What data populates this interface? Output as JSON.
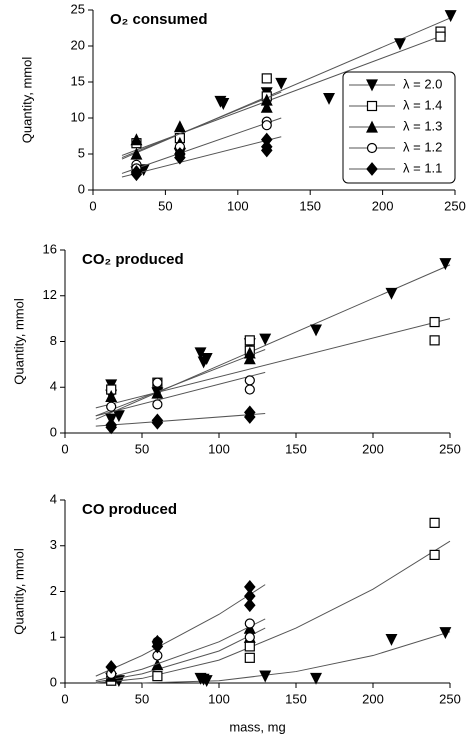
{
  "chart_data": [
    {
      "type": "scatter",
      "title": "O₂ consumed",
      "y_label": "Quantity,  mmol",
      "xlim": [
        0,
        250
      ],
      "ylim": [
        0,
        25
      ],
      "xticks": [
        0,
        50,
        100,
        150,
        200,
        250
      ],
      "yticks": [
        0,
        5,
        10,
        15,
        20,
        25
      ],
      "legend": "upper right",
      "series": [
        {
          "name": "λ = 2.0",
          "marker": "triangle-down",
          "color": "#000000",
          "x": [
            30,
            35,
            60,
            88,
            90,
            120,
            130,
            163,
            212,
            247
          ],
          "values": [
            2.5,
            2.8,
            5,
            12.3,
            12,
            13.5,
            14.8,
            12.7,
            20.3,
            24.2
          ],
          "fit_x": [
            20,
            248
          ],
          "fit_y": [
            4.3,
            24
          ]
        },
        {
          "name": "λ = 1.4",
          "marker": "square",
          "color": "#000000",
          "x": [
            30,
            60,
            120,
            120,
            240,
            240
          ],
          "values": [
            6.5,
            7.2,
            15.5,
            13,
            22,
            21.3
          ],
          "fit_x": [
            20,
            242
          ],
          "fit_y": [
            4.8,
            21.5
          ]
        },
        {
          "name": "λ = 1.3",
          "marker": "triangle-up",
          "color": "#000000",
          "x": [
            30,
            30,
            60,
            60,
            120,
            120
          ],
          "values": [
            7,
            5,
            8.8,
            6.5,
            11.5,
            12.5
          ],
          "fit_x": [
            20,
            130
          ],
          "fit_y": [
            4.5,
            13.6
          ]
        },
        {
          "name": "λ = 1.2",
          "marker": "circle",
          "color": "#000000",
          "x": [
            30,
            30,
            60,
            60,
            120,
            120
          ],
          "values": [
            3.5,
            3,
            6,
            5,
            9.5,
            9
          ],
          "fit_x": [
            20,
            130
          ],
          "fit_y": [
            2.3,
            10
          ]
        },
        {
          "name": "λ = 1.1",
          "marker": "diamond",
          "color": "#000000",
          "x": [
            30,
            30,
            60,
            60,
            120,
            120,
            120
          ],
          "values": [
            2.5,
            2.2,
            5,
            4.5,
            6,
            5.5,
            7
          ],
          "fit_x": [
            20,
            130
          ],
          "fit_y": [
            1.8,
            7.4
          ]
        }
      ]
    },
    {
      "type": "scatter",
      "title": "CO₂ produced",
      "y_label": "Quantity,  mmol",
      "xlim": [
        0,
        250
      ],
      "ylim": [
        0,
        16
      ],
      "xticks": [
        0,
        50,
        100,
        150,
        200,
        250
      ],
      "yticks": [
        0,
        4,
        8,
        12,
        16
      ],
      "series": [
        {
          "marker": "triangle-down",
          "color": "#000000",
          "x": [
            30,
            30,
            35,
            30,
            60,
            88,
            90,
            92,
            120,
            130,
            163,
            212,
            247
          ],
          "values": [
            4.2,
            3.3,
            1.5,
            1.2,
            3.5,
            7,
            6.2,
            6.5,
            7.8,
            8.2,
            9,
            12.2,
            14.8
          ],
          "fit_x": [
            20,
            250
          ],
          "fit_y": [
            1.2,
            14.7
          ]
        },
        {
          "marker": "square",
          "color": "#000000",
          "x": [
            30,
            60,
            120,
            120,
            240,
            240
          ],
          "values": [
            3.8,
            4.4,
            8.1,
            7.2,
            9.7,
            8.1
          ],
          "fit_x": [
            20,
            250
          ],
          "fit_y": [
            2.2,
            10
          ]
        },
        {
          "marker": "triangle-up",
          "color": "#000000",
          "x": [
            30,
            60,
            120,
            120
          ],
          "values": [
            3.2,
            3.5,
            7,
            6.5
          ],
          "fit_x": [
            20,
            130
          ],
          "fit_y": [
            1.5,
            7.3
          ]
        },
        {
          "marker": "circle",
          "color": "#000000",
          "x": [
            30,
            60,
            60,
            120,
            120
          ],
          "values": [
            2.3,
            4.4,
            2.5,
            4.6,
            3.8
          ],
          "fit_x": [
            20,
            130
          ],
          "fit_y": [
            1.5,
            5.3
          ]
        },
        {
          "marker": "diamond",
          "color": "#000000",
          "x": [
            30,
            30,
            60,
            60,
            120,
            120
          ],
          "values": [
            0.7,
            0.5,
            1.1,
            0.9,
            1.8,
            1.4
          ],
          "fit_x": [
            20,
            130
          ],
          "fit_y": [
            0.6,
            1.7
          ]
        }
      ]
    },
    {
      "type": "scatter",
      "title": "CO produced",
      "y_label": "Quantity,  mmol",
      "x_label": "mass, mg",
      "xlim": [
        0,
        250
      ],
      "ylim": [
        0,
        4
      ],
      "xticks": [
        0,
        50,
        100,
        150,
        200,
        250
      ],
      "yticks": [
        0,
        1,
        2,
        3,
        4
      ],
      "series": [
        {
          "marker": "triangle-down",
          "color": "#000000",
          "x": [
            30,
            35,
            88,
            90,
            92,
            130,
            163,
            212,
            247
          ],
          "values": [
            0.1,
            0.05,
            0.1,
            0.08,
            0.05,
            0.15,
            0.1,
            0.95,
            1.1
          ],
          "fit_x": [
            50,
            100,
            150,
            200,
            250
          ],
          "fit_y": [
            0,
            0.05,
            0.25,
            0.6,
            1.12
          ]
        },
        {
          "marker": "square",
          "color": "#000000",
          "x": [
            30,
            60,
            120,
            120,
            240,
            240
          ],
          "values": [
            0.05,
            0.15,
            0.8,
            0.55,
            3.5,
            2.8
          ],
          "fit_x": [
            20,
            50,
            100,
            150,
            200,
            250
          ],
          "fit_y": [
            0,
            0.1,
            0.5,
            1.2,
            2.05,
            3.1
          ]
        },
        {
          "marker": "triangle-up",
          "color": "#000000",
          "x": [
            30,
            60,
            120,
            120
          ],
          "values": [
            0.15,
            0.4,
            1,
            1.2
          ],
          "fit_x": [
            20,
            50,
            100,
            130
          ],
          "fit_y": [
            0.02,
            0.2,
            0.7,
            1.2
          ]
        },
        {
          "marker": "circle",
          "color": "#000000",
          "x": [
            30,
            60,
            60,
            120,
            120
          ],
          "values": [
            0.2,
            0.6,
            0.9,
            1.3,
            1
          ],
          "fit_x": [
            20,
            50,
            100,
            130
          ],
          "fit_y": [
            0.05,
            0.3,
            0.9,
            1.4
          ]
        },
        {
          "marker": "diamond",
          "color": "#000000",
          "x": [
            30,
            60,
            60,
            120,
            120,
            120
          ],
          "values": [
            0.35,
            0.8,
            0.9,
            2.1,
            1.9,
            1.7
          ],
          "fit_x": [
            20,
            50,
            100,
            130
          ],
          "fit_y": [
            0.15,
            0.6,
            1.5,
            2.15
          ]
        }
      ]
    }
  ]
}
